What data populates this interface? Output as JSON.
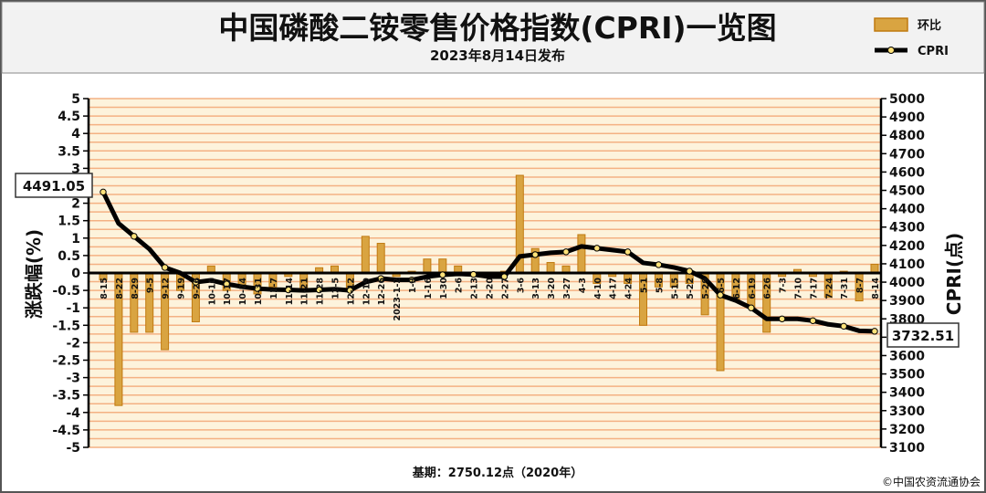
{
  "header": {
    "title": "中国磷酸二铵零售价格指数(CPRI)一览图",
    "subtitle": "2023年8月14日发布"
  },
  "legend": {
    "bar_label": "环比",
    "line_label": "CPRI"
  },
  "footer": {
    "base": "基期：2750.12点（2020年）",
    "copyright": "©中国农资流通协会"
  },
  "callouts": {
    "first": "4491.05",
    "last": "3732.51"
  },
  "colors": {
    "background": "#fdf3dc",
    "stripe": "#f4b183",
    "bar": "#d9a441",
    "bar_edge": "#c07a10",
    "line": "#000000",
    "marker": "#ffe27a",
    "header_bg": "#f2f2f2"
  },
  "chart_data": {
    "type": "bar+line",
    "x_tick_labels": [
      "8-15",
      "8-22",
      "8-29",
      "9-5",
      "9-12",
      "9-19",
      "9-26",
      "10-10",
      "10-17",
      "10-24",
      "10-31",
      "11-7",
      "11-14",
      "11-21",
      "11-28",
      "12-5",
      "12-12",
      "12-19",
      "12-26",
      "2023-1-2",
      "1-9",
      "1-16",
      "1-30",
      "2-6",
      "2-13",
      "2-20",
      "2-27",
      "3-6",
      "3-13",
      "3-20",
      "3-27",
      "4-3",
      "4-10",
      "4-17",
      "4-24",
      "5-1",
      "5-8",
      "5-15",
      "5-22",
      "5-29",
      "6-5",
      "6-12",
      "6-19",
      "6-26",
      "7-3",
      "7-10",
      "7-17",
      "7-24",
      "7-31",
      "8-7",
      "8-14"
    ],
    "series": [
      {
        "name": "环比",
        "axis": "left",
        "type": "bar",
        "values": [
          -0.2,
          -3.8,
          -1.7,
          -1.7,
          -2.2,
          -0.5,
          -1.4,
          0.2,
          -0.5,
          -0.4,
          -0.6,
          -0.4,
          -0.1,
          -0.5,
          0.15,
          0.2,
          -0.5,
          1.05,
          0.85,
          -0.1,
          0.05,
          0.4,
          0.4,
          0.2,
          -0.05,
          -0.05,
          0.05,
          2.8,
          0.7,
          0.3,
          0.2,
          1.1,
          -0.3,
          -0.1,
          -0.3,
          -1.5,
          -0.4,
          -0.4,
          -0.3,
          -1.2,
          -2.8,
          -0.8,
          -1.0,
          -1.7,
          -0.1,
          0.1,
          -0.1,
          -0.7,
          0.05,
          -0.8,
          0.25
        ]
      },
      {
        "name": "CPRI",
        "axis": "right",
        "type": "line",
        "values": [
          4491.05,
          4320,
          4250,
          4180,
          4080,
          4050,
          4000,
          4010,
          3990,
          3975,
          3965,
          3960,
          3958,
          3955,
          3958,
          3962,
          3955,
          4000,
          4020,
          4012,
          4012,
          4030,
          4040,
          4045,
          4042,
          4030,
          4030,
          4140,
          4150,
          4160,
          4165,
          4195,
          4185,
          4175,
          4165,
          4105,
          4095,
          4080,
          4060,
          4020,
          3930,
          3900,
          3860,
          3800,
          3800,
          3800,
          3790,
          3770,
          3760,
          3735,
          3732.51
        ]
      }
    ],
    "y_left": {
      "label": "涨跌幅(%)",
      "ticks": [
        "5",
        "4.5",
        "4",
        "3.5",
        "3",
        "2.5",
        "2",
        "1.5",
        "1",
        "0.5",
        "0",
        "-0.5",
        "-1",
        "-1.5",
        "-2",
        "-2.5",
        "-3",
        "-3.5",
        "-4",
        "-4.5",
        "-5"
      ],
      "range": [
        -5,
        5
      ]
    },
    "y_right": {
      "label": "CPRI(点)",
      "ticks": [
        "5000",
        "4900",
        "4800",
        "4700",
        "4600",
        "4500",
        "4400",
        "4300",
        "4200",
        "4100",
        "4000",
        "3900",
        "3800",
        "3700",
        "3600",
        "3500",
        "3400",
        "3300",
        "3200",
        "3100"
      ],
      "range": [
        3100,
        5000
      ]
    },
    "legend_position": "top-right"
  }
}
